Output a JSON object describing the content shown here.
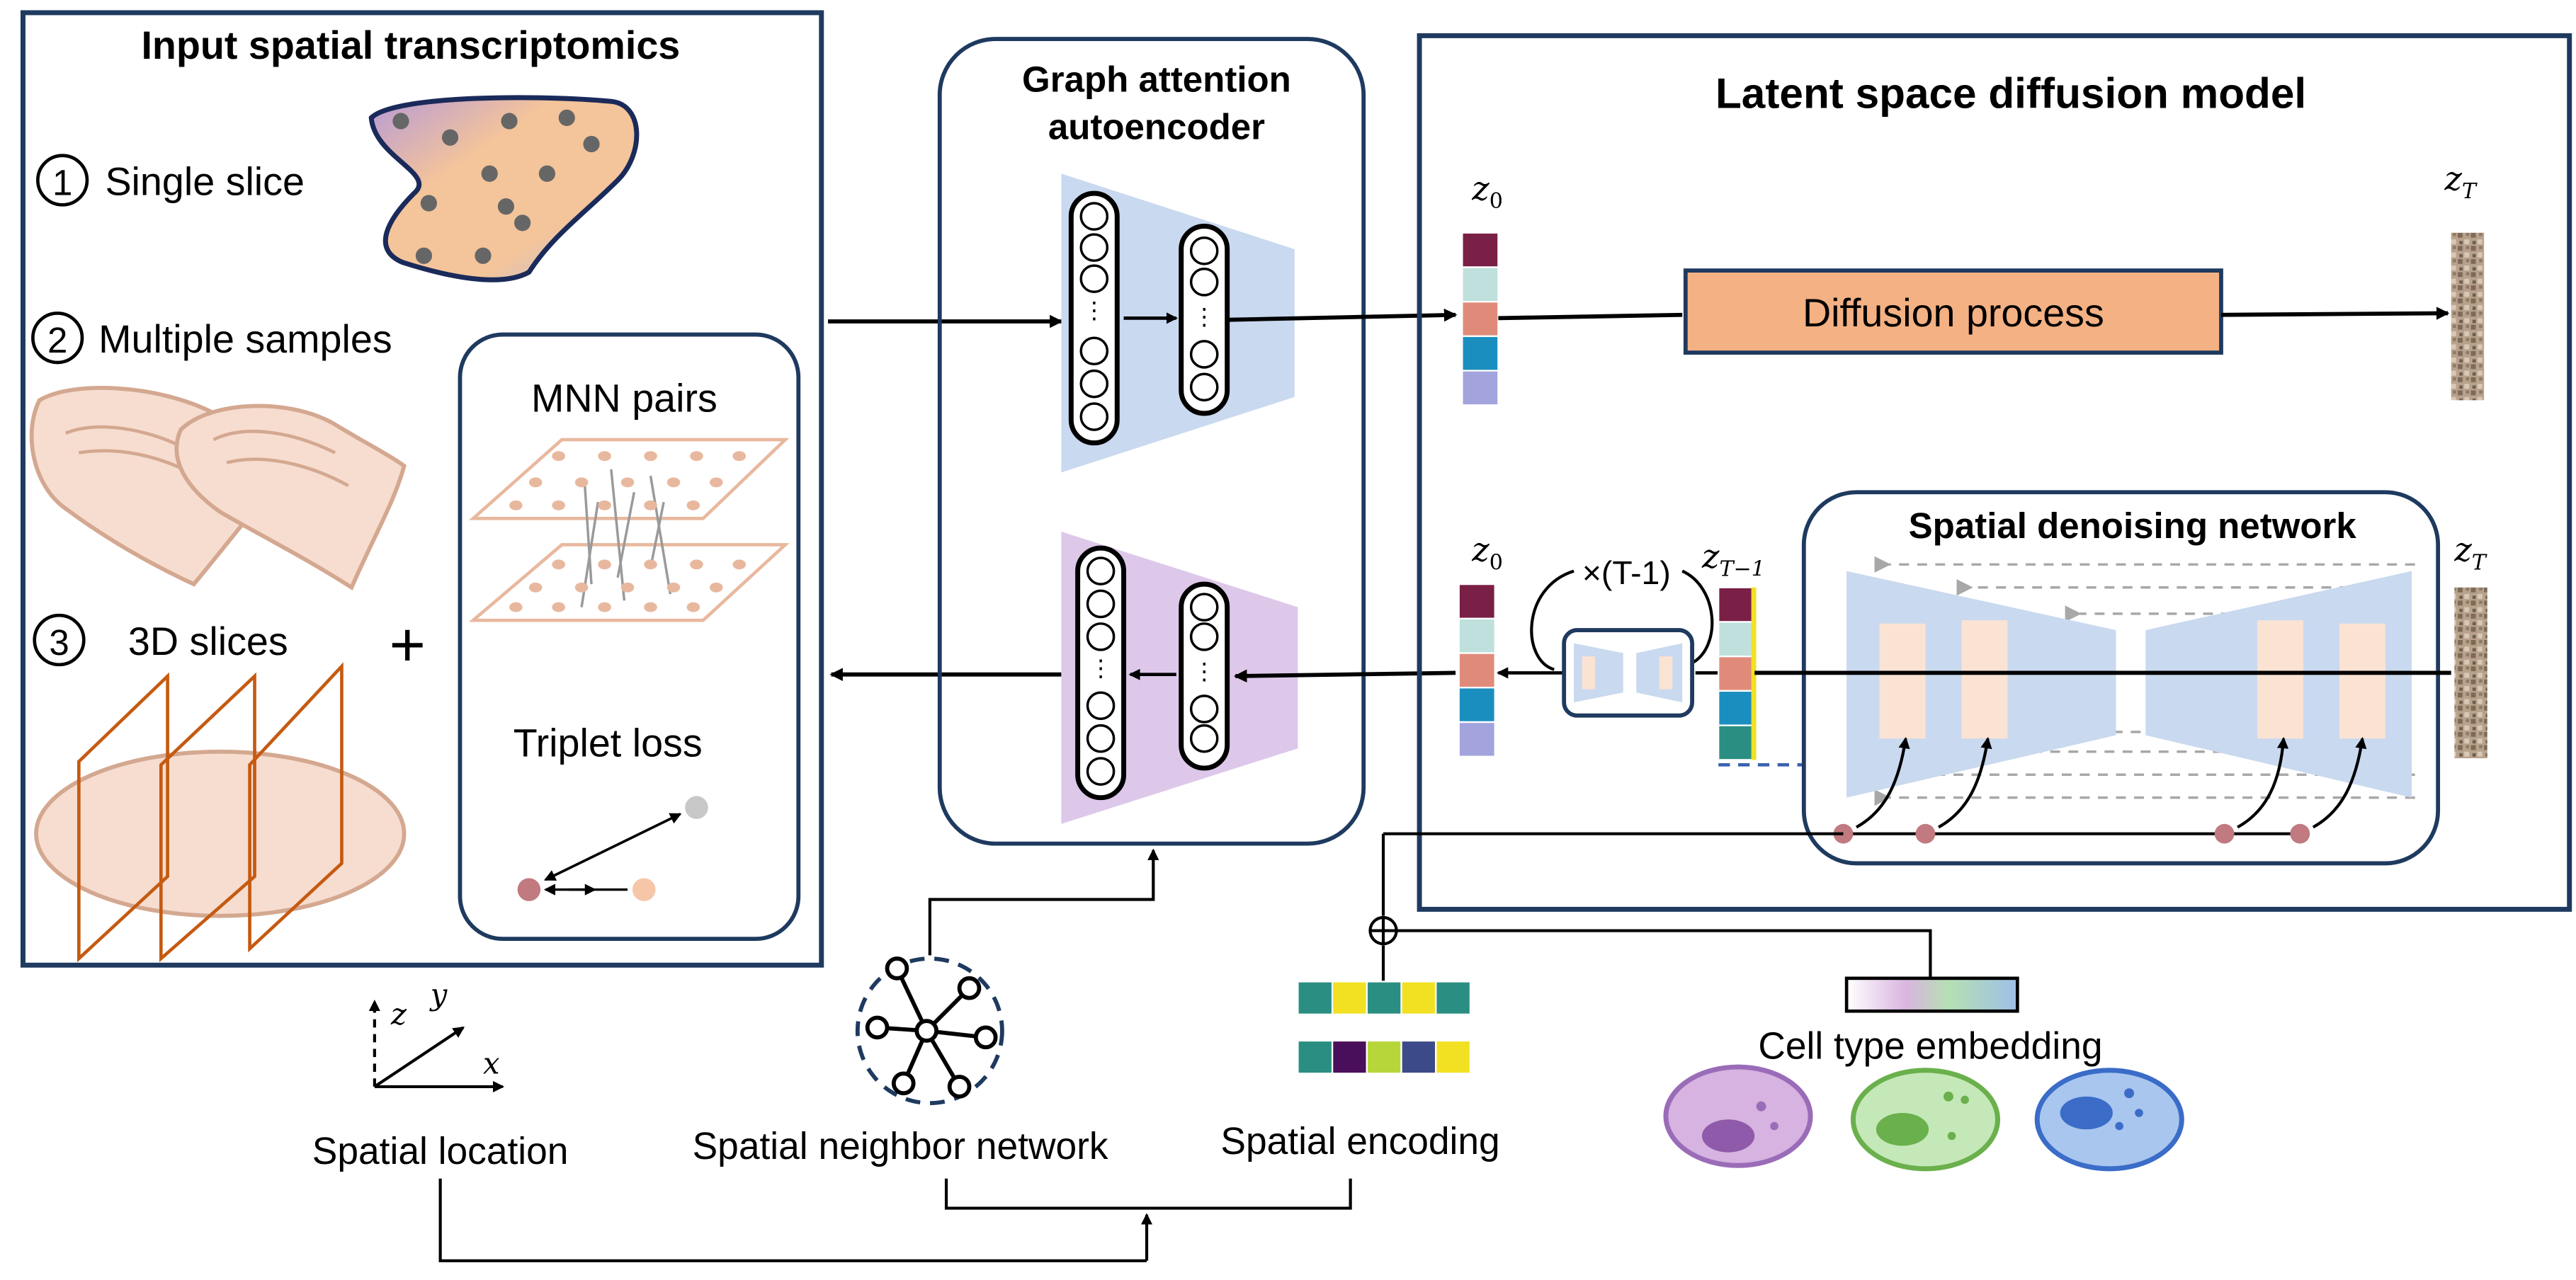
{
  "input_panel": {
    "title": "Input spatial transcriptomics",
    "items": [
      {
        "num": "1",
        "label": "Single slice"
      },
      {
        "num": "2",
        "label": "Multiple samples"
      },
      {
        "num": "3",
        "label": "3D slices"
      }
    ],
    "plus": "+",
    "mnn_label": "MNN pairs",
    "triplet_label": "Triplet loss"
  },
  "gat_panel": {
    "title_line1": "Graph attention",
    "title_line2": "autoencoder",
    "encoder_color": "#c9d9ef",
    "decoder_color": "#ddc8ea"
  },
  "diffusion_panel": {
    "title": "Latent space diffusion model",
    "z0_top": "z",
    "z0_sub": "0",
    "zT_sub": "T",
    "zT1_sub": "T−1",
    "process_label": "Diffusion process",
    "process_color": "#f4b183",
    "repeat_label": "×(T-1)",
    "denoise_title": "Spatial denoising network"
  },
  "bottom": {
    "spatial_location": "Spatial location",
    "axis_x": "x",
    "axis_y": "y",
    "axis_z": "z",
    "neighbor_network": "Spatial neighbor network",
    "spatial_encoding": "Spatial encoding",
    "cell_type_embedding": "Cell type embedding"
  },
  "latent_colors": [
    "#7a1f45",
    "#bfe0dd",
    "#e08b7a",
    "#1a8fbf",
    "#a3a3de"
  ],
  "encoding_row1": [
    "#2a8f82",
    "#f2e022",
    "#2a8f82",
    "#f2e022",
    "#2a8f82"
  ],
  "encoding_row2": [
    "#2a8f82",
    "#4a0f5a",
    "#b7d63a",
    "#3d4a8a",
    "#f2e022"
  ]
}
